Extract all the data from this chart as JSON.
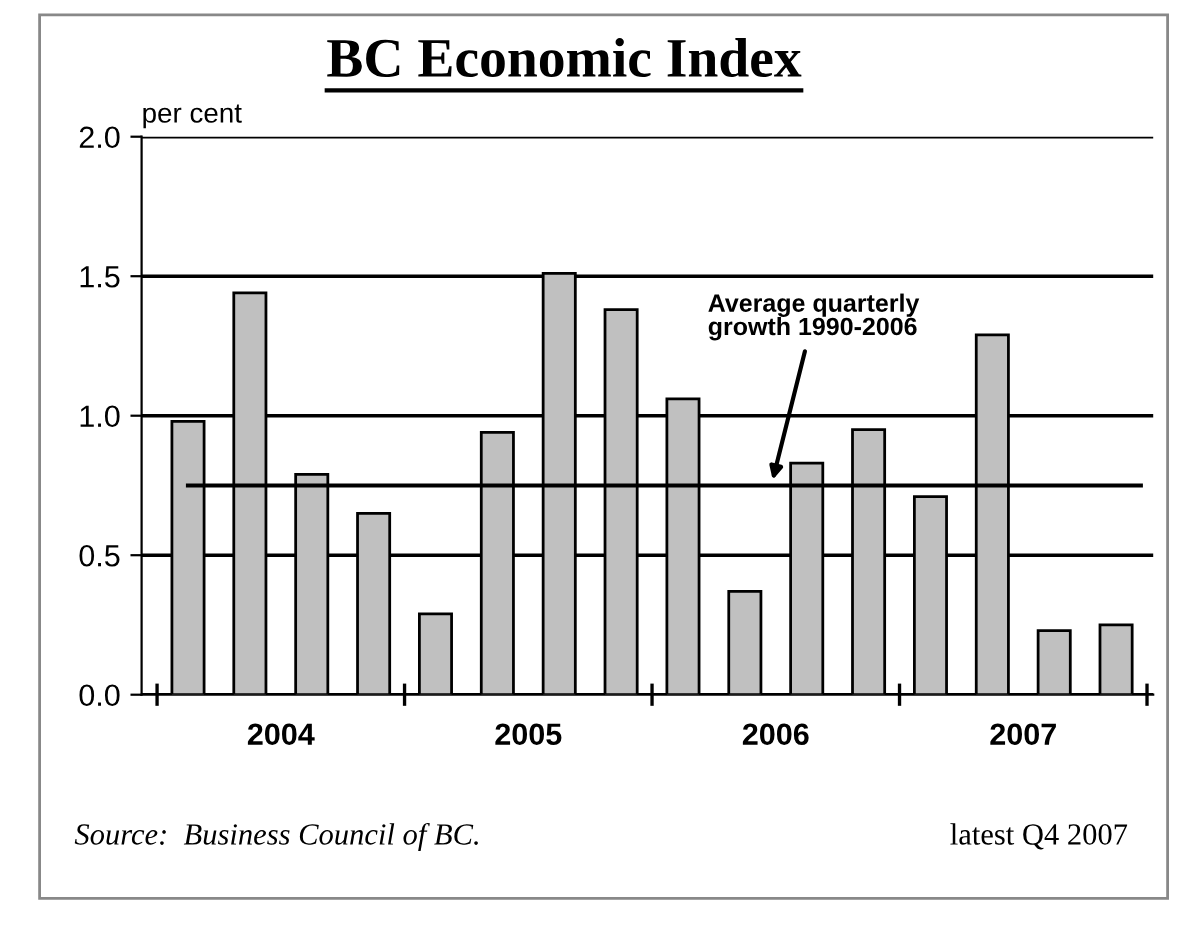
{
  "chart_data": {
    "type": "bar",
    "title": "BC Economic Index",
    "ylabel": "per cent",
    "categories": [
      null,
      null,
      null,
      null,
      null,
      null,
      null,
      null,
      null,
      null,
      null,
      null,
      null,
      null,
      null,
      null
    ],
    "values": [
      0.98,
      1.44,
      0.79,
      0.65,
      0.29,
      0.94,
      1.51,
      1.38,
      1.06,
      0.37,
      0.83,
      0.95,
      0.71,
      1.29,
      0.23,
      0.25
    ],
    "color": "#c0c0c0",
    "ylim": [
      0,
      2.0
    ],
    "yticks": [
      {
        "value": 0,
        "label": "0.0"
      },
      {
        "value": 0.5,
        "label": "0.5"
      },
      {
        "value": 1.0,
        "label": "1.0"
      },
      {
        "value": 1.5,
        "label": "1.5"
      },
      {
        "value": 2.0,
        "label": "2.0"
      }
    ],
    "grid": "y",
    "ref_lines": [
      {
        "axis": "y",
        "value": 0.75,
        "label": "Average quarterly\ngrowth 1990-2006",
        "color": "#000000"
      }
    ],
    "annotations": [
      "2004",
      "2005",
      "2006",
      "2007",
      "Source:  Business Council of BC.",
      "latest Q4 2007"
    ]
  }
}
